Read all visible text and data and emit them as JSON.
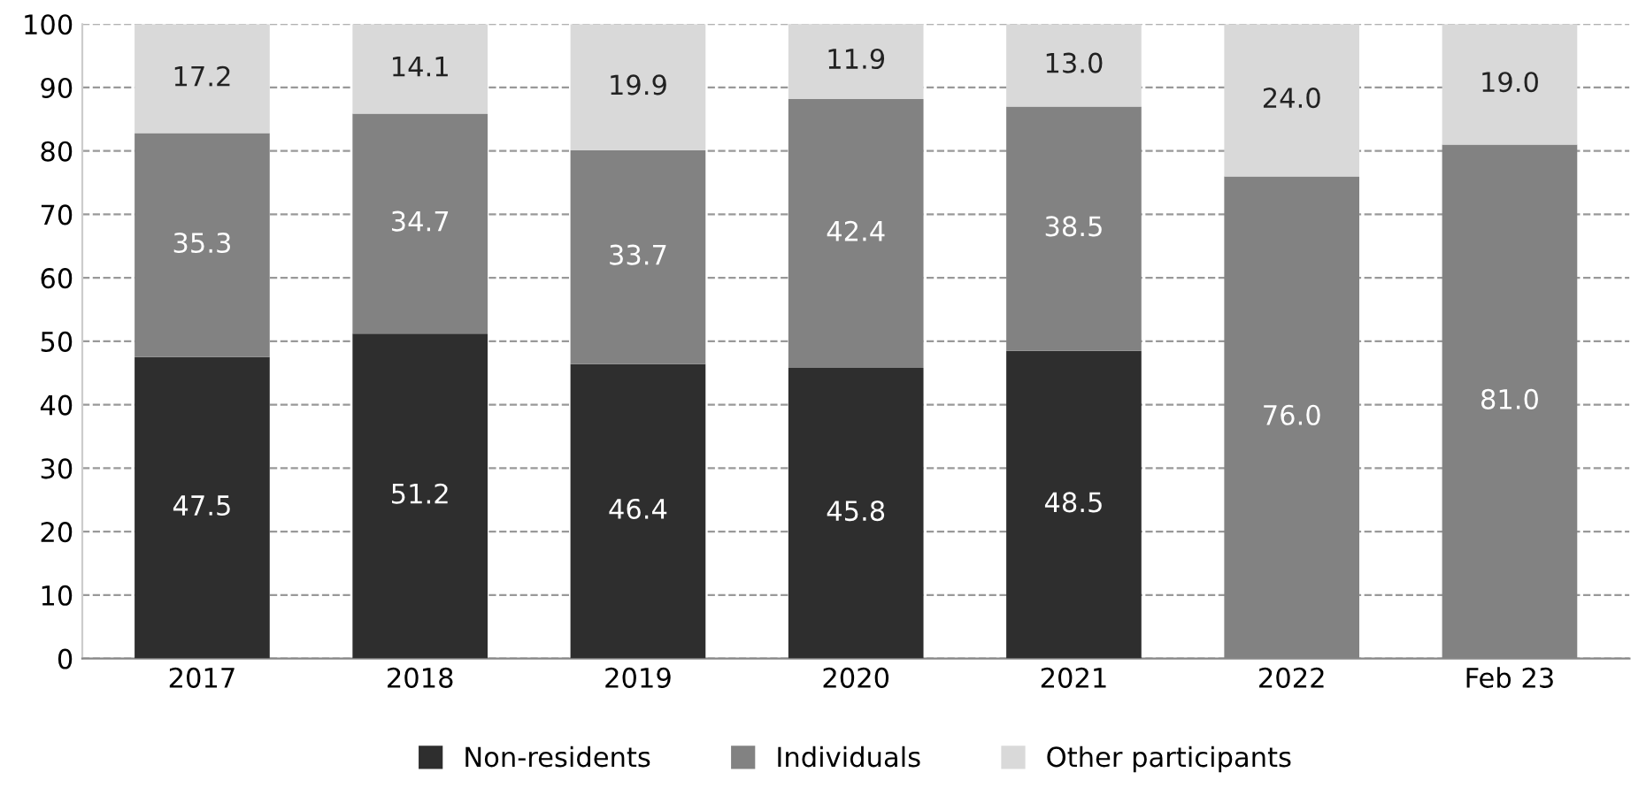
{
  "chart_data": {
    "type": "bar",
    "stacked": true,
    "categories": [
      "2017",
      "2018",
      "2019",
      "2020",
      "2021",
      "2022",
      "Feb 23"
    ],
    "series": [
      {
        "name": "Non-residents",
        "color": "#2e2e2e",
        "values": [
          47.5,
          51.2,
          46.4,
          45.8,
          48.5,
          null,
          null
        ],
        "value_labels": [
          "47.5",
          "51.2",
          "46.4",
          "45.8",
          "48.5",
          null,
          null
        ]
      },
      {
        "name": "Individuals",
        "color": "#828282",
        "values": [
          35.3,
          34.7,
          33.7,
          42.4,
          38.5,
          76,
          81
        ],
        "value_labels": [
          "35.3",
          "34.7",
          "33.7",
          "42.4",
          "38.5",
          "76.0",
          "81.0"
        ]
      },
      {
        "name": "Other participants",
        "color": "#d9d9d9",
        "values": [
          17.2,
          14.1,
          19.9,
          11.9,
          13,
          24,
          19
        ],
        "value_labels": [
          "17.2",
          "14.1",
          "19.9",
          "11.9",
          "13.0",
          "24.0",
          "19.0"
        ]
      }
    ],
    "ylim": [
      0,
      100
    ],
    "yticks": [
      0,
      10,
      20,
      30,
      40,
      50,
      60,
      70,
      80,
      90,
      100
    ],
    "grid": "y",
    "legend": "bottom"
  }
}
